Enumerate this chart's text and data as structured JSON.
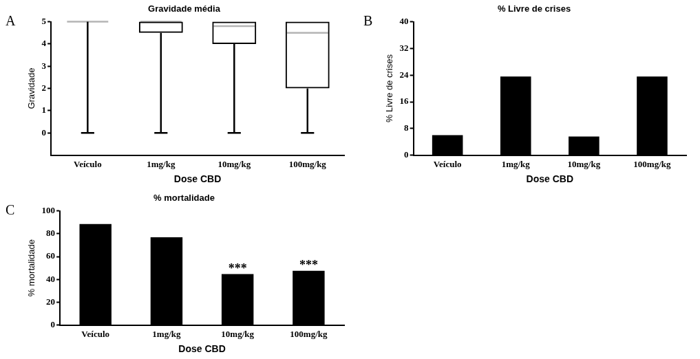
{
  "chart_data": [
    {
      "type": "box",
      "title": "Gravidade média",
      "xlabel": "Dose CBD",
      "ylabel": "Gravidade",
      "categories": [
        "Veículo",
        "1mg/kg",
        "10mg/kg",
        "100mg/kg"
      ],
      "color": "#000000",
      "boxes": [
        {
          "low": 0,
          "q1": 5,
          "median": 5,
          "q3": 5,
          "high": 5
        },
        {
          "low": 0,
          "q1": 4.5,
          "median": 5,
          "q3": 5,
          "high": 5
        },
        {
          "low": 0,
          "q1": 4,
          "median": 4.8,
          "q3": 5,
          "high": 5
        },
        {
          "low": 0,
          "q1": 2,
          "median": 4.5,
          "q3": 5,
          "high": 5
        }
      ],
      "ylim": [
        -1,
        5
      ],
      "yticks": [
        0,
        1,
        2,
        3,
        4,
        5
      ],
      "grid": false,
      "legend": false,
      "annotations": [
        "A"
      ]
    },
    {
      "type": "bar",
      "title": "% Livre de crises",
      "xlabel": "Dose CBD",
      "ylabel": "% Livre de crises",
      "categories": [
        "Veículo",
        "1mg/kg",
        "10mg/kg",
        "100mg/kg"
      ],
      "color": "#000000",
      "values": [
        6,
        23.6,
        5.6,
        23.6
      ],
      "ylim": [
        0,
        40
      ],
      "yticks": [
        0,
        8,
        16,
        24,
        32,
        40
      ],
      "grid": false,
      "legend": false,
      "annotations": [
        "B"
      ]
    },
    {
      "type": "bar",
      "title": "% mortalidade",
      "xlabel": "Dose CBD",
      "ylabel": "% mortalidade",
      "categories": [
        "Veículo",
        "1mg/kg",
        "10mg/kg",
        "100mg/kg"
      ],
      "color": "#000000",
      "values": [
        88.4,
        76.9,
        44.7,
        47.5
      ],
      "ylim": [
        0,
        100
      ],
      "yticks": [
        0,
        20,
        40,
        60,
        80,
        100
      ],
      "grid": false,
      "legend": false,
      "annotations": [
        "C",
        {
          "text": "***",
          "x": "10mg/kg",
          "y": 44.7
        },
        {
          "text": "***",
          "x": "100mg/kg",
          "y": 47.5
        }
      ]
    }
  ]
}
